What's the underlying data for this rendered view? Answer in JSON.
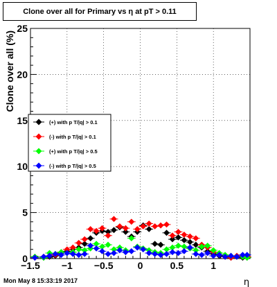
{
  "footer": {
    "timestamp": "Mon May  8 15:33:19 2017"
  },
  "chart_data": {
    "type": "scatter",
    "title": "Clone  over all for Primary vs   η at pT > 0.11",
    "xlabel": "η",
    "ylabel": "Clone  over all (%)",
    "xlim": [
      -1.5,
      1.5
    ],
    "ylim": [
      0,
      25
    ],
    "x_ticks": [
      -1.5,
      -1,
      -0.5,
      0,
      0.5,
      1
    ],
    "x_tick_labels": [
      "−1.5",
      "−1",
      "−0.5",
      "0",
      "0.5",
      "1"
    ],
    "y_ticks": [
      0,
      5,
      10,
      15,
      20,
      25
    ],
    "y_tick_labels": [
      "0",
      "5",
      "10",
      "15",
      "20",
      "25"
    ],
    "grid": true,
    "legend_position": "left",
    "colors": {
      "black": "#000000",
      "red": "#ff0000",
      "green": "#00ff00",
      "blue": "#0000ff"
    },
    "x": [
      -1.44,
      -1.32,
      -1.24,
      -1.16,
      -1.08,
      -1.0,
      -0.92,
      -0.84,
      -0.76,
      -0.68,
      -0.6,
      -0.52,
      -0.44,
      -0.36,
      -0.28,
      -0.2,
      -0.12,
      -0.04,
      0.04,
      0.12,
      0.2,
      0.28,
      0.36,
      0.44,
      0.52,
      0.6,
      0.68,
      0.76,
      0.84,
      0.92,
      1.0,
      1.08,
      1.16,
      1.24,
      1.32,
      1.4,
      1.46
    ],
    "series": [
      {
        "name": "(+) with p T/|q| > 0.1",
        "color": "#000000",
        "values": [
          0.2,
          0.1,
          0.2,
          0.3,
          0.6,
          0.8,
          1.0,
          1.2,
          1.6,
          2.2,
          2.8,
          3.0,
          2.9,
          3.1,
          3.4,
          2.9,
          2.4,
          2.9,
          3.6,
          3.2,
          1.6,
          1.5,
          2.8,
          2.1,
          2.3,
          2.0,
          1.8,
          1.5,
          1.2,
          0.8,
          0.5,
          0.3,
          0.2,
          0.1,
          0.2,
          0.1,
          0.1
        ]
      },
      {
        "name": "(-) with p T/|q| > 0.1",
        "color": "#ff0000",
        "values": [
          0.1,
          0.2,
          0.3,
          0.4,
          0.7,
          1.0,
          1.2,
          1.7,
          2.1,
          3.2,
          3.0,
          3.3,
          2.5,
          4.3,
          3.5,
          3.3,
          4.0,
          3.2,
          3.5,
          3.8,
          3.5,
          3.6,
          3.7,
          2.5,
          2.9,
          2.6,
          2.4,
          2.2,
          1.5,
          1.2,
          0.7,
          0.4,
          0.2,
          0.1,
          0.3,
          0.2,
          0.2
        ]
      },
      {
        "name": "(+) with p T/|q| > 0.5",
        "color": "#00ff00",
        "values": [
          0.2,
          0.1,
          0.6,
          0.5,
          0.7,
          0.6,
          0.7,
          1.0,
          0.9,
          1.1,
          1.6,
          1.3,
          1.5,
          1.0,
          1.2,
          0.9,
          2.2,
          1.3,
          1.1,
          0.9,
          0.7,
          0.6,
          1.0,
          1.2,
          1.4,
          1.3,
          1.1,
          0.9,
          1.3,
          1.4,
          0.9,
          0.6,
          0.4,
          0.3,
          0.2,
          0.2,
          0.1
        ]
      },
      {
        "name": "(-) with p T/|q| > 0.5",
        "color": "#0000ff",
        "values": [
          0.1,
          0.2,
          0.3,
          0.5,
          0.4,
          0.6,
          0.5,
          0.4,
          0.5,
          1.4,
          1.1,
          0.8,
          0.5,
          0.6,
          0.9,
          0.7,
          0.8,
          1.2,
          1.0,
          0.6,
          0.5,
          0.4,
          0.5,
          0.7,
          0.6,
          0.8,
          1.2,
          0.5,
          0.4,
          0.6,
          0.3,
          0.4,
          0.2,
          0.3,
          0.2,
          0.4,
          0.4
        ]
      }
    ]
  }
}
